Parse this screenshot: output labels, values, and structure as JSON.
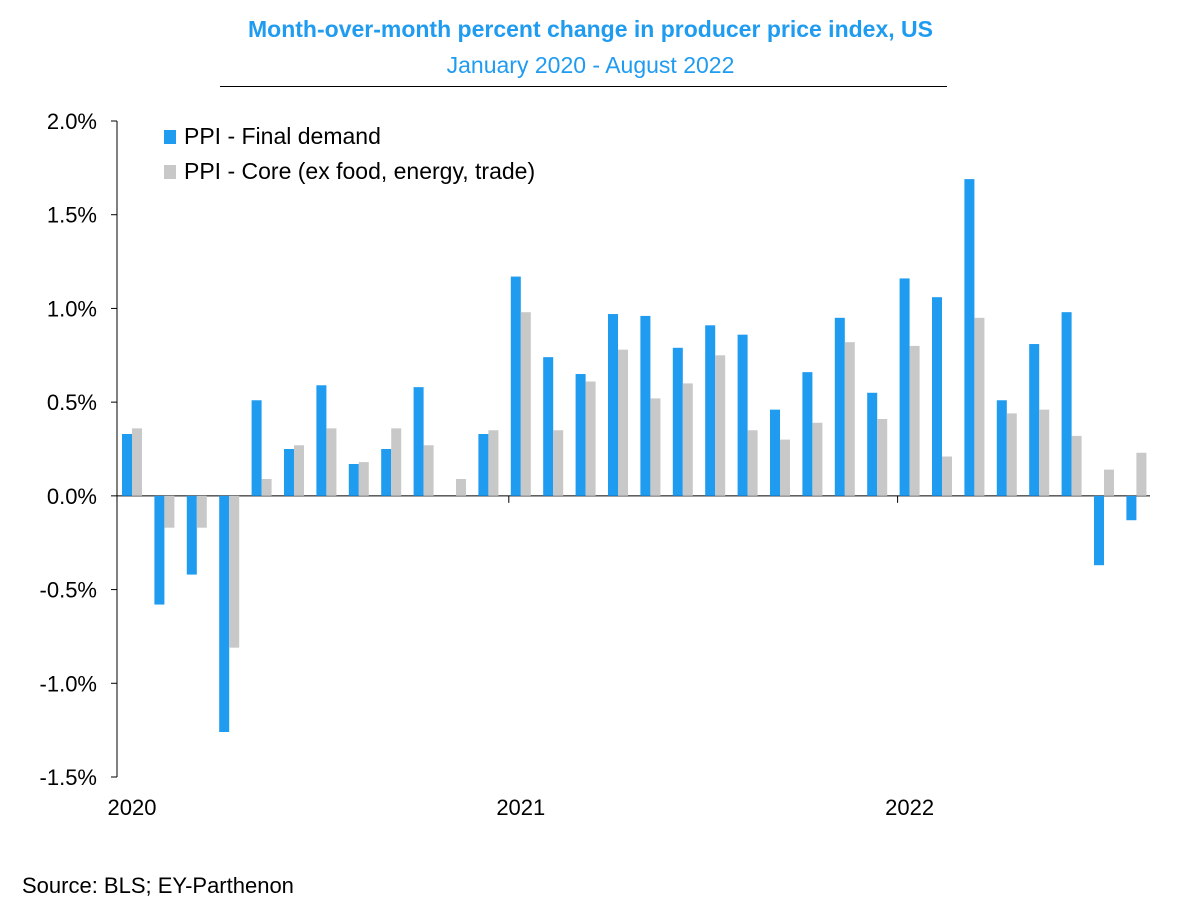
{
  "chart_data": {
    "type": "bar",
    "title": "Month-over-month percent change in producer price index, US",
    "subtitle": "January 2020 - August 2022",
    "source": "Source: BLS; EY-Parthenon",
    "xlabel": "",
    "ylabel": "",
    "ylim": [
      -1.5,
      2.0
    ],
    "yticks": [
      2.0,
      1.5,
      1.0,
      0.5,
      0.0,
      -0.5,
      -1.0,
      -1.5
    ],
    "ytick_labels": [
      "2.0%",
      "1.5%",
      "1.0%",
      "0.5%",
      "0.0%",
      "-0.5%",
      "-1.0%",
      "-1.5%"
    ],
    "x_year_labels": [
      {
        "label": "2020",
        "index": 0
      },
      {
        "label": "2021",
        "index": 12
      },
      {
        "label": "2022",
        "index": 24
      }
    ],
    "legend_position": "top-left",
    "categories": [
      "2020-01",
      "2020-02",
      "2020-03",
      "2020-04",
      "2020-05",
      "2020-06",
      "2020-07",
      "2020-08",
      "2020-09",
      "2020-10",
      "2020-11",
      "2020-12",
      "2021-01",
      "2021-02",
      "2021-03",
      "2021-04",
      "2021-05",
      "2021-06",
      "2021-07",
      "2021-08",
      "2021-09",
      "2021-10",
      "2021-11",
      "2021-12",
      "2022-01",
      "2022-02",
      "2022-03",
      "2022-04",
      "2022-05",
      "2022-06",
      "2022-07",
      "2022-08"
    ],
    "series": [
      {
        "name": "PPI - Final demand",
        "color": "#1f9bf0",
        "values": [
          0.33,
          -0.58,
          -0.42,
          -1.26,
          0.51,
          0.25,
          0.59,
          0.17,
          0.25,
          0.58,
          0.0,
          0.33,
          1.17,
          0.74,
          0.65,
          0.97,
          0.96,
          0.79,
          0.91,
          0.86,
          0.46,
          0.66,
          0.95,
          0.55,
          1.16,
          1.06,
          1.69,
          0.51,
          0.81,
          0.98,
          -0.37,
          -0.13
        ]
      },
      {
        "name": "PPI - Core (ex food, energy, trade)",
        "color": "#c8c8c8",
        "values": [
          0.36,
          -0.17,
          -0.17,
          -0.81,
          0.09,
          0.27,
          0.36,
          0.18,
          0.36,
          0.27,
          0.09,
          0.35,
          0.98,
          0.35,
          0.61,
          0.78,
          0.52,
          0.6,
          0.75,
          0.35,
          0.3,
          0.39,
          0.82,
          0.41,
          0.8,
          0.21,
          0.95,
          0.44,
          0.46,
          0.32,
          0.14,
          0.23
        ]
      }
    ]
  }
}
